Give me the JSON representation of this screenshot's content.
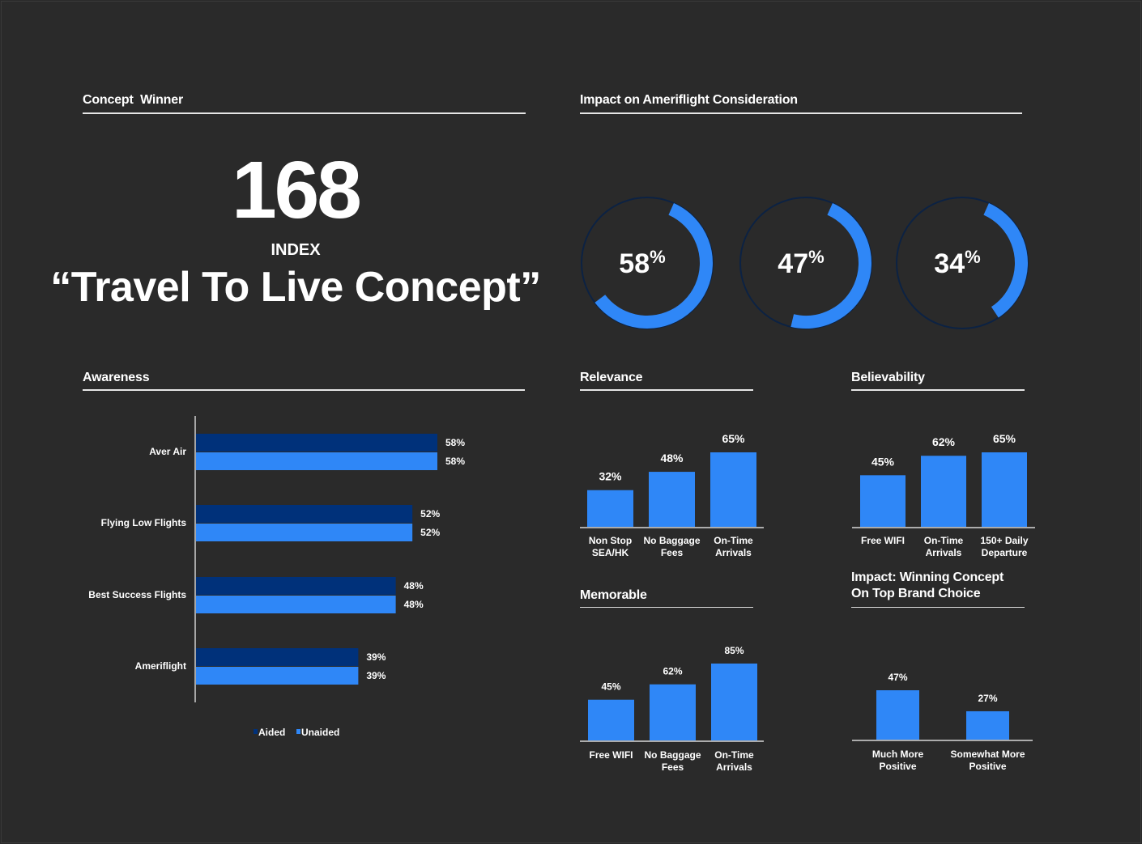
{
  "colors": {
    "background": "#2a2a2a",
    "primary_blue": "#2f87f7",
    "dark_blue": "#00317a",
    "ring_track": "#0c2243",
    "text": "#ffffff"
  },
  "concept_winner": {
    "title": "Concept  Winner",
    "index_value": "168",
    "index_label": "INDEX",
    "concept_name": "“Travel To Live Concept”"
  },
  "consideration": {
    "title": "Impact on Ameriflight Consideration"
  },
  "chart_data": [
    {
      "id": "consideration",
      "type": "pie",
      "style": "donut-rings",
      "values": [
        58,
        47,
        34
      ],
      "labels": [
        "58",
        "47",
        "34"
      ],
      "unit": "%"
    },
    {
      "id": "awareness",
      "type": "bar",
      "orientation": "horizontal",
      "title": "Awareness",
      "categories": [
        "Aver Air",
        "Flying Low Flights",
        "Best Success Flights",
        "Ameriflight"
      ],
      "series": [
        {
          "name": "Aided",
          "values": [
            58,
            52,
            48,
            39
          ],
          "labels": [
            "58%",
            "52%",
            "48%",
            "39%"
          ],
          "color": "#00317a"
        },
        {
          "name": "Unaided",
          "values": [
            58,
            52,
            48,
            39
          ],
          "labels": [
            "58%",
            "52%",
            "48%",
            "39%"
          ],
          "color": "#2f87f7"
        }
      ],
      "xlim": [
        0,
        100
      ],
      "legend": "bottom"
    },
    {
      "id": "relevance",
      "type": "bar",
      "title": "Relevance",
      "categories": [
        [
          "Non Stop",
          "SEA/HK"
        ],
        [
          "No Baggage",
          "Fees"
        ],
        [
          "On-Time",
          "Arrivals"
        ]
      ],
      "values": [
        32,
        48,
        65
      ],
      "labels": [
        "32%",
        "48%",
        "65%"
      ],
      "ylim": [
        0,
        100
      ]
    },
    {
      "id": "believability",
      "type": "bar",
      "title": "Believability",
      "categories": [
        [
          "Free WIFI"
        ],
        [
          "On-Time",
          "Arrivals"
        ],
        [
          "150+ Daily",
          "Departure"
        ]
      ],
      "values": [
        45,
        62,
        65
      ],
      "labels": [
        "45%",
        "62%",
        "65%"
      ],
      "ylim": [
        0,
        100
      ]
    },
    {
      "id": "memorable",
      "type": "bar",
      "title": "Memorable",
      "categories": [
        [
          "Free WIFI"
        ],
        [
          "No Baggage",
          "Fees"
        ],
        [
          "On-Time",
          "Arrivals"
        ]
      ],
      "values": [
        45,
        62,
        85
      ],
      "labels": [
        "45%",
        "62%",
        "85%"
      ],
      "ylim": [
        0,
        100
      ]
    },
    {
      "id": "impact",
      "type": "bar",
      "title": "Impact: Winning Concept\nOn Top Brand Choice",
      "categories": [
        [
          "Much More",
          "Positive"
        ],
        [
          "Somewhat More",
          "Positive"
        ]
      ],
      "values": [
        47,
        27
      ],
      "labels": [
        "47%",
        "27%"
      ],
      "ylim": [
        0,
        100
      ]
    }
  ]
}
